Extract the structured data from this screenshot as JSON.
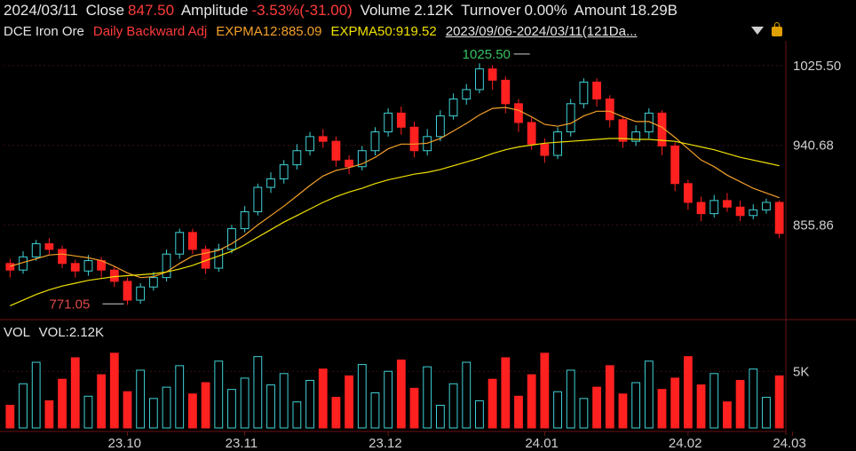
{
  "info": {
    "date": "2024/03/11",
    "close_label": "Close",
    "close_value": "847.50",
    "amplitude_label": "Amplitude",
    "amplitude_value": "-3.53%(-31.00)",
    "volume_label": "Volume",
    "volume_value": "2.12K",
    "turnover_label": "Turnover",
    "turnover_value": "0.00%",
    "amount_label": "Amount",
    "amount_value": "18.29B"
  },
  "legend": {
    "instrument": "DCE Iron Ore",
    "adjust": "Daily Backward Adj",
    "ema12": "EXPMA12:885.09",
    "ema50": "EXPMA50:919.52",
    "range": "2023/09/06-2024/03/11(121Da..."
  },
  "volume_panel": {
    "label": "VOL",
    "value_label": "VOL:2.12K"
  },
  "icons": [
    "dropdown-icon",
    "lock-icon"
  ],
  "colors": {
    "up": "#3fd3d8",
    "down": "#ff2020",
    "ema12": "#f3a02a",
    "ema50": "#f0e000",
    "grid": "#3a1010",
    "axis_text": "#cfcfcf",
    "high_label": "#36c25e",
    "low_label": "#e04848"
  },
  "chart_data": {
    "type": "candlestick",
    "y_ticks": [
      1025.5,
      940.68,
      855.86
    ],
    "ylim": [
      760,
      1050
    ],
    "x_tick_labels": [
      "23.10",
      "23.11",
      "23.12",
      "24.01",
      "24.02",
      "24.03"
    ],
    "x_tick_index": [
      20,
      41,
      67,
      96,
      121,
      139
    ],
    "annotations": [
      {
        "text": "1025.50",
        "index": 94
      },
      {
        "text": "771.05",
        "index": 22
      }
    ],
    "volume_ticks": [
      "5K"
    ],
    "volume_ylim": [
      0,
      8000
    ],
    "candles_sampled": [
      [
        815,
        808,
        820,
        800
      ],
      [
        808,
        822,
        828,
        804
      ],
      [
        822,
        836,
        840,
        818
      ],
      [
        836,
        830,
        842,
        825
      ],
      [
        830,
        815,
        834,
        810
      ],
      [
        815,
        807,
        819,
        800
      ],
      [
        807,
        818,
        824,
        802
      ],
      [
        818,
        808,
        822,
        800
      ],
      [
        808,
        796,
        812,
        790
      ],
      [
        796,
        776,
        800,
        771
      ],
      [
        776,
        790,
        794,
        772
      ],
      [
        790,
        800,
        806,
        786
      ],
      [
        800,
        825,
        830,
        796
      ],
      [
        825,
        848,
        852,
        820
      ],
      [
        848,
        830,
        852,
        825
      ],
      [
        830,
        810,
        834,
        804
      ],
      [
        810,
        830,
        836,
        806
      ],
      [
        830,
        852,
        856,
        826
      ],
      [
        852,
        870,
        876,
        848
      ],
      [
        870,
        896,
        900,
        866
      ],
      [
        896,
        905,
        912,
        890
      ],
      [
        905,
        920,
        925,
        900
      ],
      [
        920,
        935,
        942,
        915
      ],
      [
        935,
        950,
        955,
        930
      ],
      [
        950,
        945,
        958,
        938
      ],
      [
        945,
        925,
        950,
        918
      ],
      [
        925,
        918,
        930,
        910
      ],
      [
        918,
        935,
        940,
        914
      ],
      [
        935,
        955,
        960,
        930
      ],
      [
        955,
        975,
        980,
        950
      ],
      [
        975,
        960,
        982,
        952
      ],
      [
        960,
        935,
        966,
        928
      ],
      [
        935,
        950,
        958,
        930
      ],
      [
        950,
        972,
        978,
        945
      ],
      [
        972,
        990,
        996,
        968
      ],
      [
        990,
        1000,
        1006,
        984
      ],
      [
        1000,
        1022,
        1028,
        996
      ],
      [
        1022,
        1010,
        1026,
        1000
      ],
      [
        1010,
        985,
        1014,
        975
      ],
      [
        985,
        965,
        990,
        955
      ],
      [
        965,
        942,
        970,
        936
      ],
      [
        942,
        930,
        948,
        922
      ],
      [
        930,
        955,
        960,
        926
      ],
      [
        955,
        985,
        990,
        950
      ],
      [
        985,
        1008,
        1012,
        980
      ],
      [
        1008,
        990,
        1012,
        982
      ],
      [
        990,
        968,
        994,
        960
      ],
      [
        968,
        945,
        972,
        938
      ],
      [
        945,
        955,
        962,
        940
      ],
      [
        955,
        975,
        980,
        948
      ],
      [
        975,
        940,
        978,
        930
      ],
      [
        940,
        900,
        944,
        892
      ],
      [
        900,
        880,
        904,
        872
      ],
      [
        880,
        868,
        886,
        860
      ],
      [
        868,
        882,
        888,
        864
      ],
      [
        882,
        875,
        890,
        870
      ],
      [
        875,
        866,
        882,
        860
      ],
      [
        866,
        872,
        878,
        862
      ],
      [
        872,
        880,
        884,
        868
      ],
      [
        880,
        847,
        882,
        842
      ]
    ],
    "ema12_sampled": [
      812,
      816,
      820,
      824,
      825,
      823,
      821,
      818,
      812,
      805,
      800,
      801,
      806,
      815,
      823,
      826,
      829,
      836,
      845,
      856,
      866,
      876,
      887,
      898,
      908,
      914,
      917,
      921,
      928,
      937,
      942,
      942,
      943,
      948,
      956,
      964,
      973,
      980,
      981,
      978,
      971,
      963,
      961,
      964,
      972,
      977,
      977,
      971,
      966,
      966,
      960,
      949,
      937,
      925,
      918,
      909,
      902,
      895,
      890,
      885
    ],
    "ema50_sampled": [
      770,
      776,
      782,
      787,
      791,
      794,
      797,
      799,
      801,
      802,
      803,
      804,
      806,
      809,
      813,
      818,
      823,
      828,
      835,
      843,
      851,
      859,
      866,
      873,
      880,
      886,
      891,
      895,
      900,
      904,
      907,
      910,
      912,
      915,
      919,
      923,
      927,
      932,
      936,
      939,
      941,
      943,
      944,
      945,
      946,
      947,
      948,
      948,
      947,
      947,
      946,
      945,
      942,
      939,
      936,
      932,
      928,
      925,
      922,
      919
    ]
  }
}
